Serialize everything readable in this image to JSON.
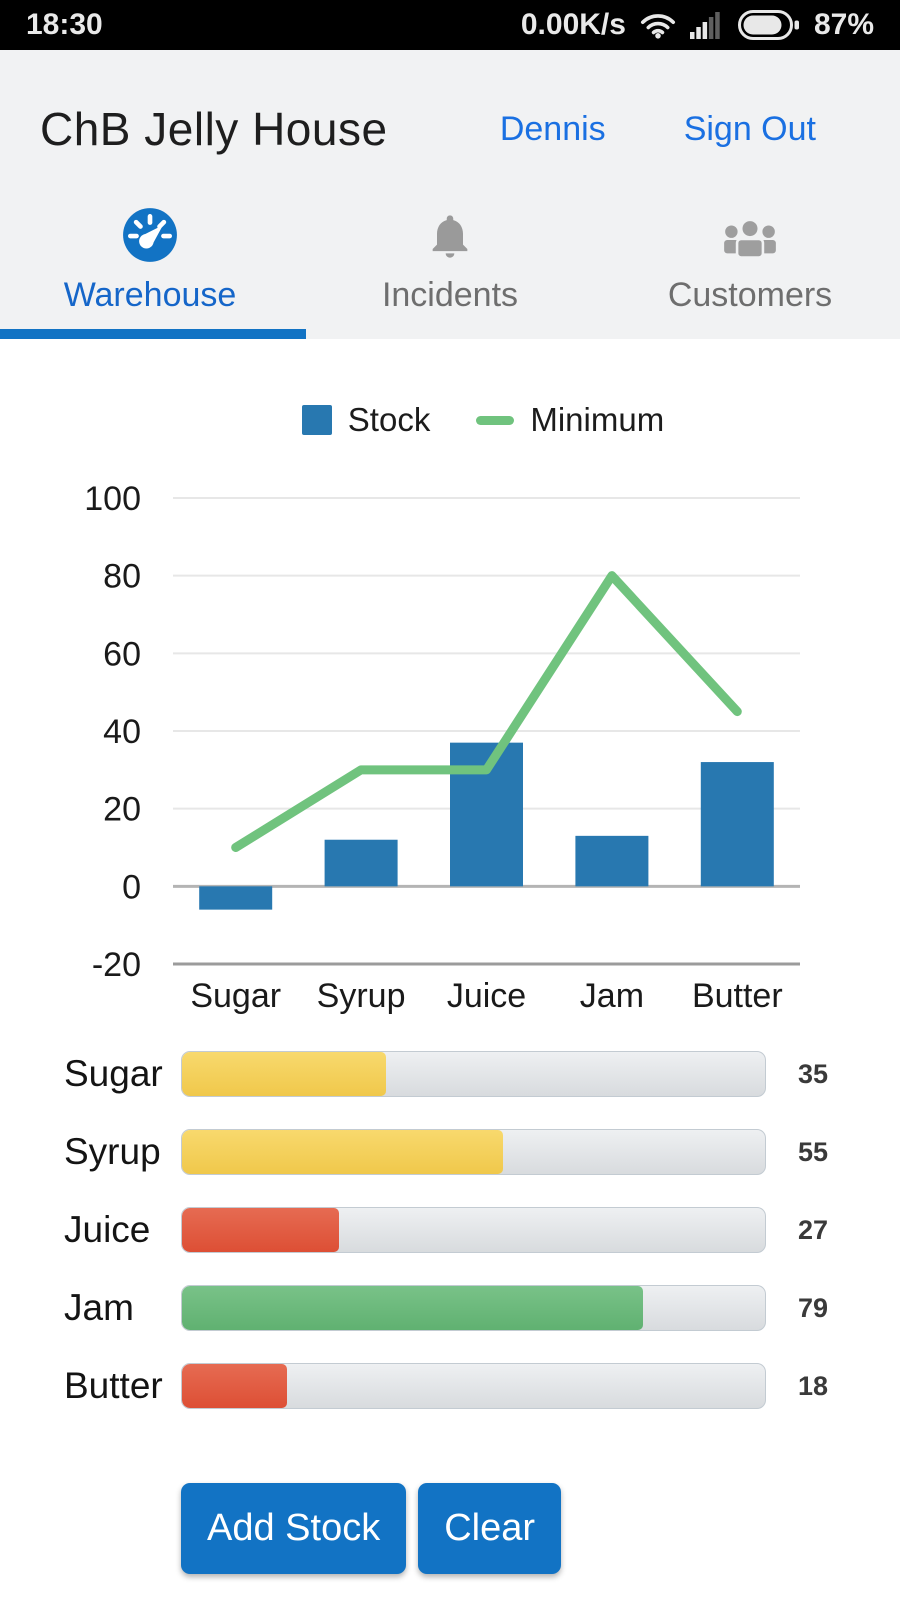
{
  "status_bar": {
    "time": "18:30",
    "network_speed": "0.00K/s",
    "battery_level": "87%"
  },
  "header": {
    "app_title": "ChB Jelly House",
    "user_name": "Dennis",
    "sign_out_label": "Sign Out"
  },
  "tabs": [
    {
      "label": "Warehouse",
      "icon": "gauge-icon",
      "active": true
    },
    {
      "label": "Incidents",
      "icon": "bell-icon",
      "active": false
    },
    {
      "label": "Customers",
      "icon": "people-icon",
      "active": false
    }
  ],
  "chart_data": {
    "type": "bar",
    "categories": [
      "Sugar",
      "Syrup",
      "Juice",
      "Jam",
      "Butter"
    ],
    "series": [
      {
        "name": "Stock",
        "type": "bar",
        "color": "#2878b0",
        "values": [
          -6,
          12,
          37,
          13,
          32
        ]
      },
      {
        "name": "Minimum",
        "type": "line",
        "color": "#70c37e",
        "values": [
          10,
          30,
          30,
          80,
          45
        ]
      }
    ],
    "ylim": [
      -20,
      100
    ],
    "yticks": [
      100,
      80,
      60,
      40,
      20,
      0,
      -20
    ],
    "grid": true,
    "legend_position": "top"
  },
  "stock_levels": {
    "max": 100,
    "rows": [
      {
        "label": "Sugar",
        "value": 35,
        "level": "medium",
        "color": "#f2cb50"
      },
      {
        "label": "Syrup",
        "value": 55,
        "level": "medium",
        "color": "#f2cb50"
      },
      {
        "label": "Juice",
        "value": 27,
        "level": "low",
        "color": "#e05a40"
      },
      {
        "label": "Jam",
        "value": 79,
        "level": "high",
        "color": "#6cba7c"
      },
      {
        "label": "Butter",
        "value": 18,
        "level": "low",
        "color": "#e05a40"
      }
    ]
  },
  "actions": {
    "add_stock_label": "Add Stock",
    "clear_label": "Clear"
  },
  "colors": {
    "accent_blue": "#1273c4",
    "link_blue": "#1a70e2",
    "bar_blue": "#2878b0",
    "line_green": "#70c37e",
    "inactive_gray": "#9e9e9e"
  }
}
